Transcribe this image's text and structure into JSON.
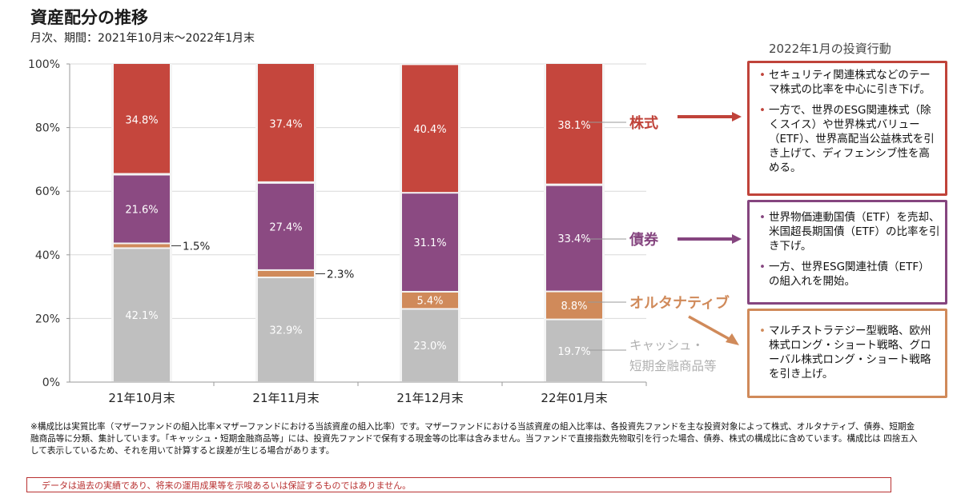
{
  "header": {
    "title": "資産配分の推移",
    "subtitle": "月次、期間：2021年10月末～2022年1月末"
  },
  "chart_data": {
    "type": "bar",
    "stacked": true,
    "title": "資産配分の推移",
    "subtitle": "月次、期間：2021年10月末～2022年1月末",
    "categories": [
      "21年10月末",
      "21年11月末",
      "21年12月末",
      "22年01月末"
    ],
    "series": [
      {
        "key": "cash",
        "name": "キャッシュ・短期金融商品等",
        "color": "#bfbfbf",
        "values": [
          42.1,
          32.9,
          23.0,
          19.7
        ],
        "labels": [
          "42.1%",
          "32.9%",
          "23.0%",
          "19.7%"
        ]
      },
      {
        "key": "alt",
        "name": "オルタナティブ",
        "color": "#d08a5a",
        "values": [
          1.5,
          2.3,
          5.4,
          8.8
        ],
        "labels": [
          "1.5%",
          "2.3%",
          "5.4%",
          "8.8%"
        ]
      },
      {
        "key": "bond",
        "name": "債券",
        "color": "#8b4a82",
        "values": [
          21.6,
          27.4,
          31.1,
          33.4
        ],
        "labels": [
          "21.6%",
          "27.4%",
          "31.1%",
          "33.4%"
        ]
      },
      {
        "key": "stock",
        "name": "株式",
        "color": "#c5463d",
        "values": [
          34.8,
          37.4,
          40.4,
          38.1
        ],
        "labels": [
          "34.8%",
          "37.4%",
          "40.4%",
          "38.1%"
        ]
      }
    ],
    "ylim": [
      0,
      100
    ],
    "yticks": [
      "0%",
      "20%",
      "40%",
      "60%",
      "80%",
      "100%"
    ],
    "ytick_values": [
      0,
      20,
      40,
      60,
      80,
      100
    ],
    "grid": true,
    "xlabel": "",
    "ylabel": "",
    "legend_labels": {
      "stock": "株式",
      "bond": "債券",
      "alt": "オルタナティブ",
      "cash_line1": "キャッシュ・",
      "cash_line2": "短期金融商品等"
    },
    "legend_placement": "right"
  },
  "side_panel": {
    "title": "2022年1月の投資行動",
    "stock_items": [
      "セキュリティ関連株式などのテーマ株式の比率を中心に引き下げ。",
      "一方で、世界のESG関連株式（除くスイス）や世界株式バリュー（ETF）、世界高配当公益株式を引き上げて、ディフェンシブ性を高める。"
    ],
    "bond_items": [
      "世界物価連動国債（ETF）を売却、米国超長期国債（ETF）の比率を引き下げ。",
      "一方、世界ESG関連社債（ETF）の組入れを開始。"
    ],
    "alt_items": [
      "マルチストラテジー型戦略、欧州株式ロング・ショート戦略、グローバル株式ロング・ショート戦略を引き上げ。"
    ]
  },
  "footer": {
    "note": "※構成比は実質比率（マザーファンドの組入比率×マザーファンドにおける当該資産の組入比率）です。マザーファンドにおける当該資産の組入比率は、各投資先ファンドを主な投資対象によって株式、オルタナティブ、債券、短期金融商品等に分類、集計しています。「キャッシュ・短期金融商品等」には、投資先ファンドで保有する現金等の比率は含みません。当ファンドで直接指数先物取引を行った場合、債券、株式の構成比に含めています。構成比は 四捨五入して表示しているため、それを用いて計算すると誤差が生じる場合があります。",
    "disclaimer": "データは過去の実績であり、将来の運用成果等を示唆あるいは保証するものではありません。"
  }
}
